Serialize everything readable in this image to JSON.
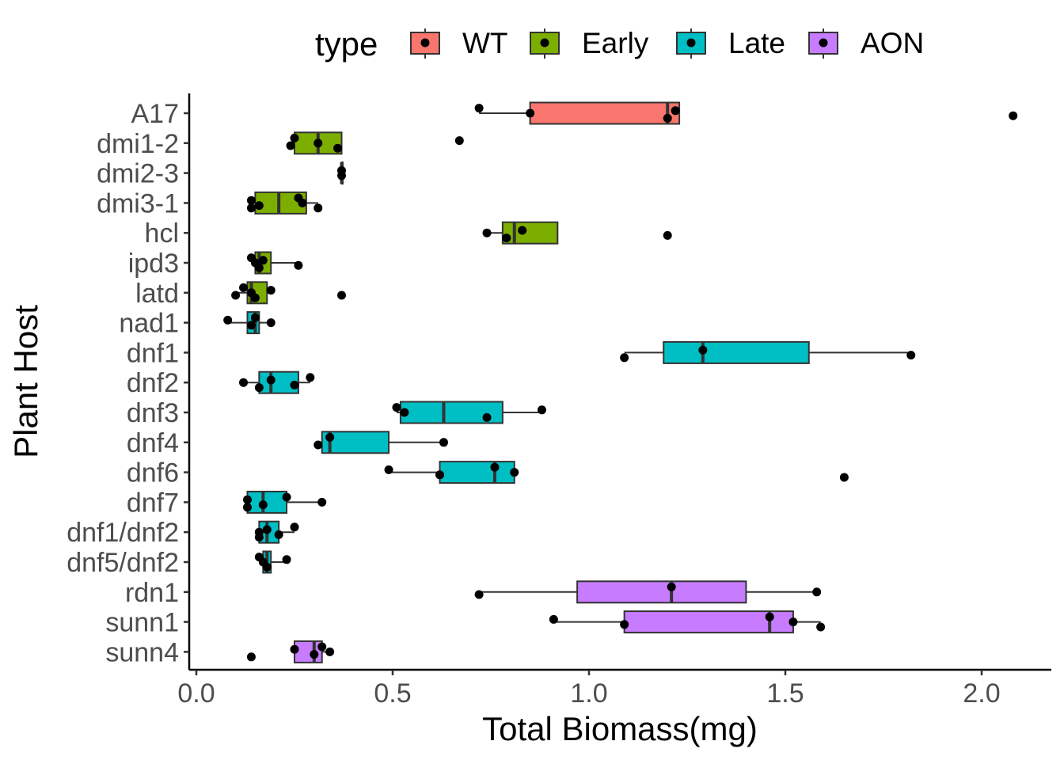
{
  "chart_data": {
    "type": "boxplot",
    "orientation": "horizontal",
    "xlabel": "Total Biomass(mg)",
    "ylabel": "Plant Host",
    "xlim": [
      -0.02,
      2.18
    ],
    "x_ticks": [
      0.0,
      0.5,
      1.0,
      1.5,
      2.0
    ],
    "x_tick_labels": [
      "0.0",
      "0.5",
      "1.0",
      "1.5",
      "2.0"
    ],
    "grid": false,
    "legend": {
      "title": "type",
      "position": "top",
      "entries": [
        {
          "name": "WT",
          "color": "#F8766D"
        },
        {
          "name": "Early",
          "color": "#7CAE00"
        },
        {
          "name": "Late",
          "color": "#00BFC4"
        },
        {
          "name": "AON",
          "color": "#C77CFF"
        }
      ]
    },
    "categories": [
      "A17",
      "dmi1-2",
      "dmi2-3",
      "dmi3-1",
      "hcl",
      "ipd3",
      "latd",
      "nad1",
      "dnf1",
      "dnf2",
      "dnf3",
      "dnf4",
      "dnf6",
      "dnf7",
      "dnf1/dnf2",
      "dnf5/dnf2",
      "rdn1",
      "sunn1",
      "sunn4"
    ],
    "boxes": [
      {
        "host": "A17",
        "type": "WT",
        "min": 0.72,
        "q1": 0.85,
        "median": 1.2,
        "q3": 1.23,
        "max": 1.23,
        "points": [
          0.72,
          0.85,
          1.2,
          1.22,
          2.08
        ]
      },
      {
        "host": "dmi1-2",
        "type": "Early",
        "min": 0.24,
        "q1": 0.25,
        "median": 0.31,
        "q3": 0.37,
        "max": 0.37,
        "points": [
          0.24,
          0.25,
          0.31,
          0.36,
          0.67
        ]
      },
      {
        "host": "dmi2-3",
        "type": "Early",
        "min": 0.37,
        "q1": 0.37,
        "median": 0.37,
        "q3": 0.37,
        "max": 0.37,
        "points": [
          0.37,
          0.37
        ]
      },
      {
        "host": "dmi3-1",
        "type": "Early",
        "min": 0.14,
        "q1": 0.15,
        "median": 0.21,
        "q3": 0.28,
        "max": 0.31,
        "points": [
          0.14,
          0.14,
          0.16,
          0.26,
          0.27,
          0.31
        ]
      },
      {
        "host": "hcl",
        "type": "Early",
        "min": 0.75,
        "q1": 0.78,
        "median": 0.81,
        "q3": 0.92,
        "max": 0.92,
        "points": [
          0.74,
          0.79,
          0.83,
          1.2
        ]
      },
      {
        "host": "ipd3",
        "type": "Early",
        "min": 0.14,
        "q1": 0.15,
        "median": 0.16,
        "q3": 0.19,
        "max": 0.26,
        "points": [
          0.14,
          0.15,
          0.16,
          0.17,
          0.26
        ]
      },
      {
        "host": "latd",
        "type": "Early",
        "min": 0.1,
        "q1": 0.13,
        "median": 0.14,
        "q3": 0.18,
        "max": 0.19,
        "points": [
          0.1,
          0.12,
          0.14,
          0.15,
          0.19,
          0.37
        ]
      },
      {
        "host": "nad1",
        "type": "Late",
        "min": 0.08,
        "q1": 0.13,
        "median": 0.15,
        "q3": 0.16,
        "max": 0.19,
        "points": [
          0.08,
          0.14,
          0.15,
          0.19
        ]
      },
      {
        "host": "dnf1",
        "type": "Late",
        "min": 1.09,
        "q1": 1.19,
        "median": 1.29,
        "q3": 1.56,
        "max": 1.82,
        "points": [
          1.09,
          1.29,
          1.82
        ]
      },
      {
        "host": "dnf2",
        "type": "Late",
        "min": 0.12,
        "q1": 0.16,
        "median": 0.19,
        "q3": 0.26,
        "max": 0.29,
        "points": [
          0.12,
          0.16,
          0.19,
          0.25,
          0.29
        ]
      },
      {
        "host": "dnf3",
        "type": "Late",
        "min": 0.51,
        "q1": 0.52,
        "median": 0.63,
        "q3": 0.78,
        "max": 0.88,
        "points": [
          0.51,
          0.53,
          0.74,
          0.88
        ]
      },
      {
        "host": "dnf4",
        "type": "Late",
        "min": 0.31,
        "q1": 0.32,
        "median": 0.34,
        "q3": 0.49,
        "max": 0.63,
        "points": [
          0.31,
          0.34,
          0.63
        ]
      },
      {
        "host": "dnf6",
        "type": "Late",
        "min": 0.49,
        "q1": 0.62,
        "median": 0.76,
        "q3": 0.81,
        "max": 0.81,
        "points": [
          0.49,
          0.62,
          0.76,
          0.81,
          1.65
        ]
      },
      {
        "host": "dnf7",
        "type": "Late",
        "min": 0.13,
        "q1": 0.13,
        "median": 0.17,
        "q3": 0.23,
        "max": 0.32,
        "points": [
          0.13,
          0.13,
          0.17,
          0.23,
          0.32
        ]
      },
      {
        "host": "dnf1/dnf2",
        "type": "Late",
        "min": 0.16,
        "q1": 0.16,
        "median": 0.18,
        "q3": 0.21,
        "max": 0.25,
        "points": [
          0.16,
          0.16,
          0.18,
          0.21,
          0.25
        ]
      },
      {
        "host": "dnf5/dnf2",
        "type": "Late",
        "min": 0.16,
        "q1": 0.17,
        "median": 0.18,
        "q3": 0.19,
        "max": 0.23,
        "points": [
          0.16,
          0.17,
          0.18,
          0.23
        ]
      },
      {
        "host": "rdn1",
        "type": "AON",
        "min": 0.72,
        "q1": 0.97,
        "median": 1.21,
        "q3": 1.4,
        "max": 1.58,
        "points": [
          0.72,
          1.21,
          1.58
        ]
      },
      {
        "host": "sunn1",
        "type": "AON",
        "min": 0.91,
        "q1": 1.09,
        "median": 1.46,
        "q3": 1.52,
        "max": 1.59,
        "points": [
          0.91,
          1.09,
          1.46,
          1.52,
          1.59
        ]
      },
      {
        "host": "sunn4",
        "type": "AON",
        "min": 0.25,
        "q1": 0.25,
        "median": 0.3,
        "q3": 0.32,
        "max": 0.34,
        "points": [
          0.14,
          0.25,
          0.3,
          0.32,
          0.34
        ]
      }
    ]
  }
}
